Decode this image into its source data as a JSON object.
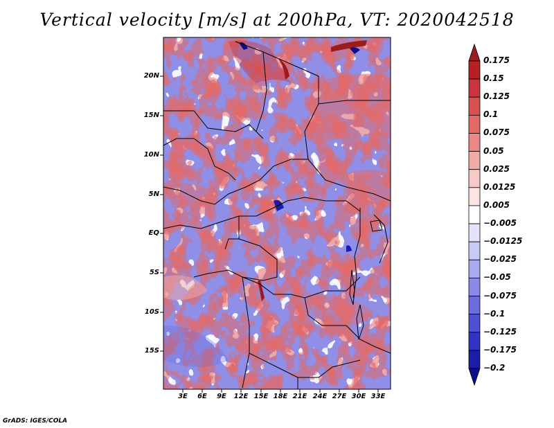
{
  "title": "Vertical velocity [m/s] at 200hPa, VT: 2020042518",
  "credit": "GrADS: IGES/COLA",
  "lat_ticks": [
    "20N",
    "15N",
    "10N",
    "5N",
    "EQ",
    "5S",
    "10S",
    "15S"
  ],
  "lon_ticks": [
    "3E",
    "6E",
    "9E",
    "12E",
    "15E",
    "18E",
    "21E",
    "24E",
    "27E",
    "30E",
    "33E"
  ],
  "colorbar": {
    "labels": [
      "0.175",
      "0.15",
      "0.125",
      "0.1",
      "0.075",
      "0.05",
      "0.025",
      "0.0125",
      "0.005",
      "−0.005",
      "−0.0125",
      "−0.025",
      "−0.05",
      "−0.075",
      "−0.1",
      "−0.125",
      "−0.175",
      "−0.2"
    ],
    "colors": [
      "#9b1b1f",
      "#b62025",
      "#c9353a",
      "#d85050",
      "#e36a68",
      "#ea8985",
      "#f1aaa6",
      "#f7cac7",
      "#fbe5e3",
      "#ffffff",
      "#e3e3fb",
      "#c9c9f5",
      "#a9a9ee",
      "#8a8ae6",
      "#6c6cdd",
      "#4f4fd2",
      "#3232c3",
      "#1c1ca8",
      "#0e0e8a"
    ]
  },
  "colors": {
    "positive": "#e36a68",
    "negative": "#7b7be4",
    "neutral": "#ffffff"
  }
}
